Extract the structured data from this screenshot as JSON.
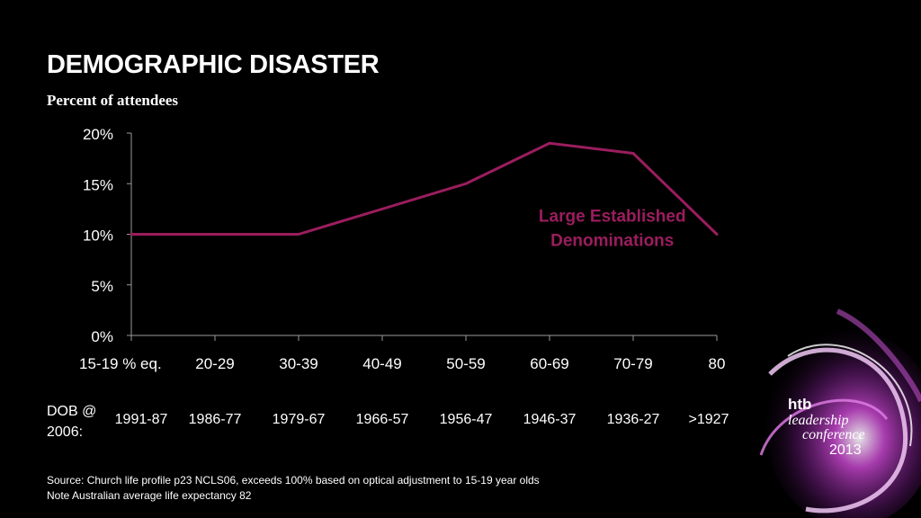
{
  "header": {
    "title": "DEMOGRAPHIC DISASTER",
    "subtitle": "Percent of attendees"
  },
  "chart_data": {
    "type": "line",
    "categories": [
      "15-19 % eq.",
      "20-29",
      "30-39",
      "40-49",
      "50-59",
      "60-69",
      "70-79",
      "80"
    ],
    "series": [
      {
        "name": "Large Established Denominations",
        "values": [
          10,
          10,
          10,
          12.5,
          15,
          19,
          18,
          10
        ],
        "color": "#9b1d5e"
      }
    ],
    "yticks": [
      "0%",
      "5%",
      "10%",
      "15%",
      "20%"
    ],
    "ylim": [
      0,
      20
    ],
    "grid": false,
    "series_label_lines": [
      "Large Established",
      "Denominations"
    ],
    "series_label_value": [
      5.75,
      11.25
    ]
  },
  "dob": {
    "label": "DOB @ 2006:",
    "values": [
      "1991-87",
      "1986-77",
      "1979-67",
      "1966-57",
      "1956-47",
      "1946-37",
      "1936-27",
      ">1927"
    ]
  },
  "source": {
    "line1": "Source: Church life profile p23 NCLS06, exceeds 100% based on optical adjustment to 15-19 year olds",
    "line2": "Note Australian average life expectancy 82"
  },
  "logo": {
    "brand": "htb",
    "line1": "leadership",
    "line2": "conference",
    "line3": "2013"
  },
  "colors": {
    "background": "#000000",
    "line": "#9b1d5e",
    "axis": "#9a9a9a"
  }
}
